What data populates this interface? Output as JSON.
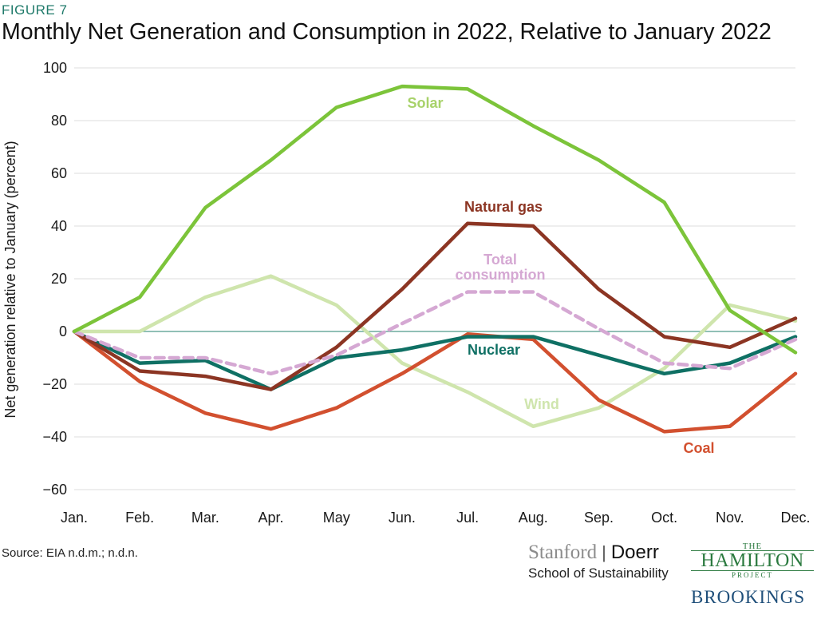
{
  "figure_label": "FIGURE 7",
  "source": "Source: EIA n.d.m.; n.d.n.",
  "logos": {
    "stanford": "Stanford",
    "doerr": "Doerr",
    "school": "School of Sustainability",
    "hamilton_the": "THE",
    "hamilton_name": "HAMILTON",
    "hamilton_project": "PROJECT",
    "brookings": "BROOKINGS"
  },
  "chart_data": {
    "type": "line",
    "title": "Monthly Net Generation and Consumption in 2022, Relative to January 2022",
    "ylabel": "Net generation relative to January (percent)",
    "xlabel": "",
    "categories": [
      "Jan.",
      "Feb.",
      "Mar.",
      "Apr.",
      "May",
      "Jun.",
      "Jul.",
      "Aug.",
      "Sep.",
      "Oct.",
      "Nov.",
      "Dec."
    ],
    "ylim": [
      -60,
      100
    ],
    "yticks": [
      100,
      80,
      60,
      40,
      20,
      0,
      -20,
      -40,
      -60
    ],
    "ytick_labels": [
      "100",
      "80",
      "60",
      "40",
      "20",
      "0",
      "−20",
      "−40",
      "−60"
    ],
    "grid": true,
    "legend": "inline labels",
    "series": [
      {
        "name": "Wind",
        "color": "#cfe5ad",
        "dashed": false,
        "values": [
          0,
          0,
          13,
          21,
          10,
          -12,
          -23,
          -36,
          -29,
          -14,
          10,
          4
        ]
      },
      {
        "name": "Coal",
        "color": "#d2502f",
        "dashed": false,
        "values": [
          0,
          -19,
          -31,
          -37,
          -29,
          -16,
          -1,
          -3,
          -26,
          -38,
          -36,
          -16
        ]
      },
      {
        "name": "Nuclear",
        "color": "#0f7064",
        "dashed": false,
        "values": [
          0,
          -12,
          -11,
          -22,
          -10,
          -7,
          -2,
          -2,
          -9,
          -16,
          -12,
          -2
        ]
      },
      {
        "name": "Natural gas",
        "color": "#8c3523",
        "dashed": false,
        "values": [
          0,
          -15,
          -17,
          -22,
          -6,
          16,
          41,
          40,
          16,
          -2,
          -6,
          5
        ]
      },
      {
        "name": "Total consumption",
        "color": "#d5a8d3",
        "dashed": true,
        "values": [
          0,
          -10,
          -10,
          -16,
          -9,
          3,
          15,
          15,
          1,
          -12,
          -14,
          -3
        ]
      },
      {
        "name": "Solar",
        "color": "#7cc43a",
        "dashed": false,
        "values": [
          0,
          13,
          47,
          65,
          85,
          93,
          92,
          78,
          65,
          49,
          8,
          -8
        ]
      }
    ],
    "annotations": [
      {
        "text": "Solar",
        "color": "#a8d26a"
      },
      {
        "text": "Natural gas",
        "color": "#8c3523"
      },
      {
        "text": "Total",
        "color": "#d5a8d3"
      },
      {
        "text": "consumption",
        "color": "#d5a8d3"
      },
      {
        "text": "Nuclear",
        "color": "#0f7064"
      },
      {
        "text": "Wind",
        "color": "#cfe5ad"
      },
      {
        "text": "Coal",
        "color": "#d2502f"
      }
    ]
  }
}
